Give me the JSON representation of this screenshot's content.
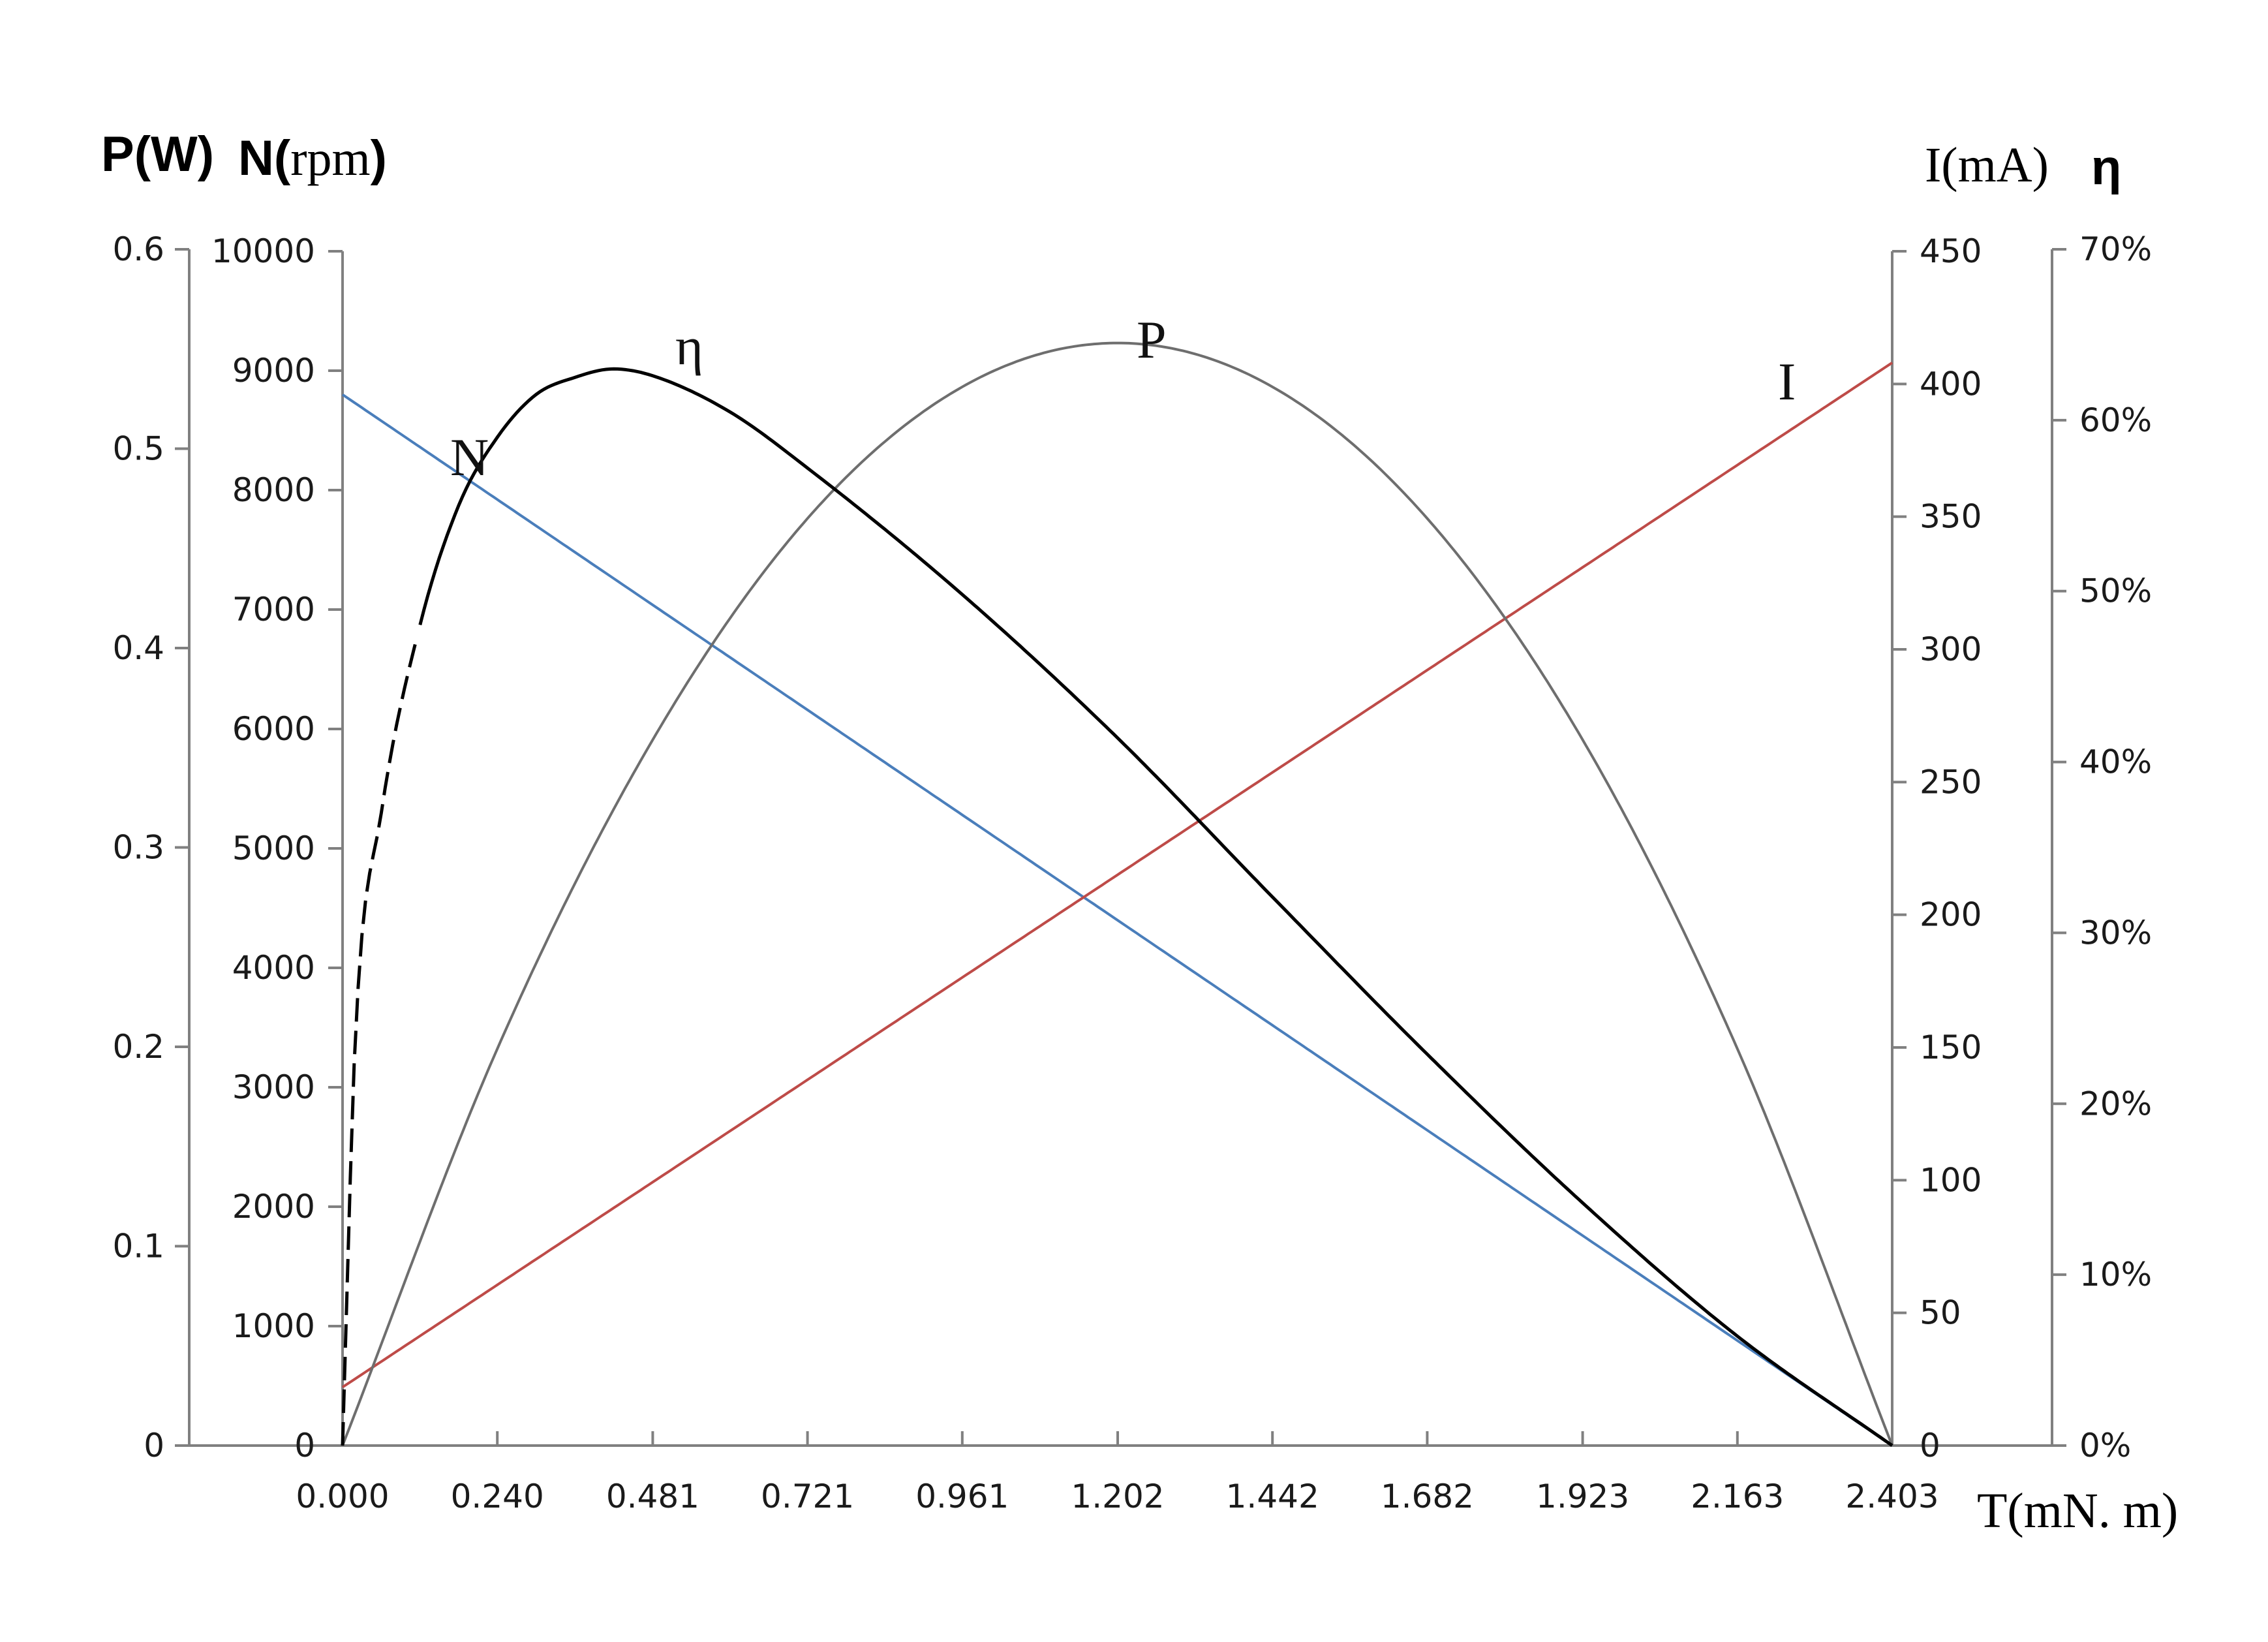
{
  "chart_data": {
    "type": "line",
    "title": "",
    "x_axis": {
      "label": "T(mN. m)",
      "ticks": [
        "0.000",
        "0.240",
        "0.481",
        "0.721",
        "0.961",
        "1.202",
        "1.442",
        "1.682",
        "1.923",
        "2.163",
        "2.403"
      ],
      "range": [
        0,
        2.403
      ]
    },
    "y_axes": {
      "power": {
        "label": "P(W)",
        "ticks": [
          "0",
          "0.1",
          "0.2",
          "0.3",
          "0.4",
          "0.5",
          "0.6"
        ],
        "range": [
          0,
          0.6
        ],
        "side": "left-outer"
      },
      "speed": {
        "label_bold": "N(",
        "label_unit": "rpm",
        "label_close": ")",
        "ticks": [
          "0",
          "1000",
          "2000",
          "3000",
          "4000",
          "5000",
          "6000",
          "7000",
          "8000",
          "9000",
          "10000"
        ],
        "range": [
          0,
          10000
        ],
        "side": "left-inner"
      },
      "current": {
        "label": "I(mA)",
        "ticks": [
          "0",
          "50",
          "100",
          "150",
          "200",
          "250",
          "300",
          "350",
          "400",
          "450"
        ],
        "range": [
          0,
          450
        ],
        "side": "right-inner"
      },
      "efficiency": {
        "label": "η",
        "ticks": [
          "0%",
          "10%",
          "20%",
          "30%",
          "40%",
          "50%",
          "60%",
          "70%"
        ],
        "range": [
          0,
          70
        ],
        "side": "right-outer"
      }
    },
    "series": [
      {
        "name": "N",
        "axis": "speed",
        "color": "#4a7ebb",
        "x": [
          0,
          2.403
        ],
        "y": [
          8800,
          0
        ]
      },
      {
        "name": "I",
        "axis": "current",
        "color": "#be4b48",
        "x": [
          0,
          2.403
        ],
        "y": [
          22,
          408
        ]
      },
      {
        "name": "P",
        "axis": "power",
        "color": "#6e6e6e",
        "x": [
          0,
          0.24,
          0.481,
          0.721,
          0.961,
          1.202,
          1.442,
          1.682,
          1.923,
          2.163,
          2.403
        ],
        "y": [
          0,
          0.199,
          0.354,
          0.465,
          0.531,
          0.553,
          0.531,
          0.465,
          0.354,
          0.199,
          0
        ]
      },
      {
        "name": "η",
        "axis": "efficiency",
        "color": "#000000",
        "x": [
          0,
          0.02,
          0.06,
          0.12,
          0.18,
          0.24,
          0.3,
          0.36,
          0.42,
          0.481,
          0.6,
          0.721,
          0.961,
          1.202,
          1.442,
          1.682,
          1.923,
          2.163,
          2.403
        ],
        "y": [
          0,
          24,
          37,
          48,
          55,
          59,
          61.5,
          62.5,
          63,
          62.6,
          60.5,
          57.2,
          49.8,
          41.4,
          32.1,
          22.9,
          14.2,
          6.4,
          0
        ],
        "dashed_until_x": 0.12
      }
    ],
    "curve_labels": [
      "η",
      "P",
      "N",
      "I"
    ]
  }
}
